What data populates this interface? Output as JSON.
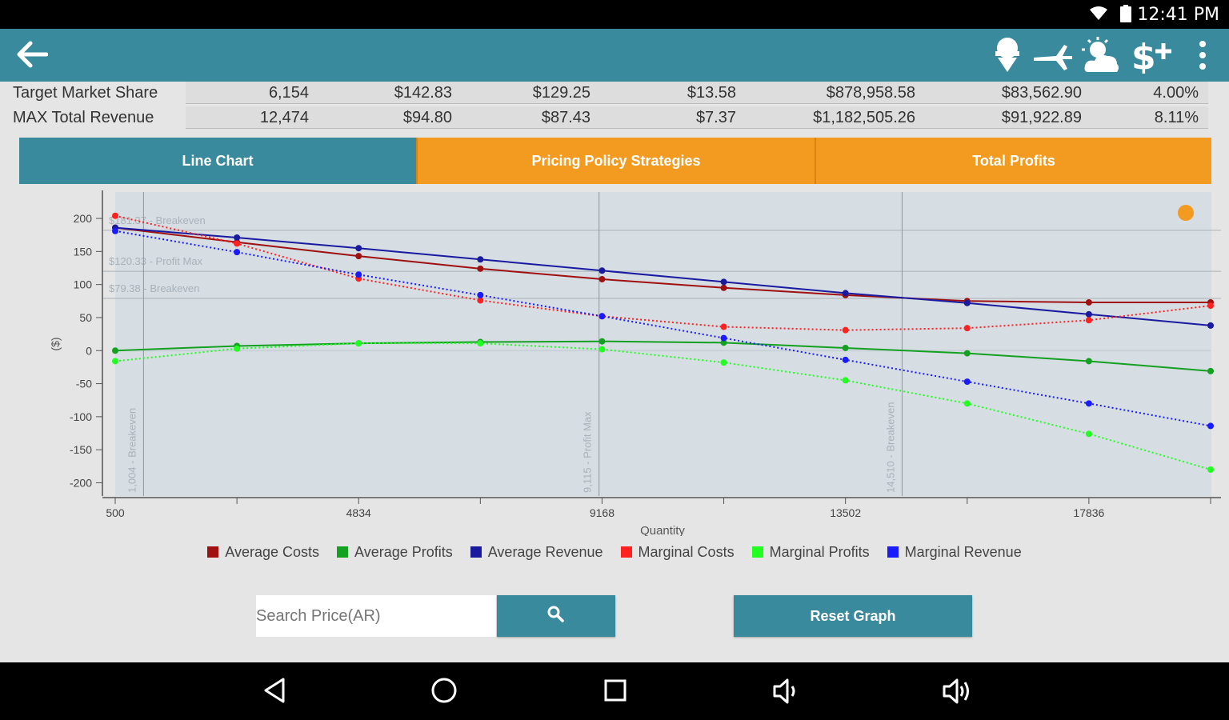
{
  "status": {
    "time": "12:41 PM"
  },
  "appbar": {
    "icons": [
      "back-arrow-icon",
      "ice-cream-icon",
      "plane-icon",
      "weather-icon",
      "dollar-plus-icon",
      "more-vert-icon"
    ]
  },
  "summary": {
    "rows": [
      {
        "label": "Target Market Share",
        "values": [
          "6,154",
          "$142.83",
          "$129.25",
          "$13.58",
          "$878,958.58",
          "$83,562.90",
          "4.00%"
        ]
      },
      {
        "label": "MAX Total Revenue",
        "values": [
          "12,474",
          "$94.80",
          "$87.43",
          "$7.37",
          "$1,182,505.26",
          "$91,922.89",
          "8.11%"
        ]
      }
    ]
  },
  "tabs": [
    {
      "label": "Line Chart",
      "active": true
    },
    {
      "label": "Pricing Policy Strategies",
      "active": false
    },
    {
      "label": "Total Profits",
      "active": false
    }
  ],
  "chart_data": {
    "type": "line",
    "xlabel": "Quantity",
    "ylabel": "($)",
    "x_ticks": [
      "500",
      "4834",
      "9168",
      "13502",
      "17836"
    ],
    "x": [
      500,
      2667,
      4834,
      7001,
      9168,
      11335,
      13502,
      15669,
      17836,
      20003
    ],
    "ylim": [
      -220,
      240
    ],
    "y_ticks": [
      200,
      150,
      100,
      50,
      0,
      -50,
      -100,
      -150,
      -200
    ],
    "hlines": [
      {
        "y": 182,
        "label": "$181.37 - Breakeven"
      },
      {
        "y": 120,
        "label": "$120.33 - Profit Max"
      },
      {
        "y": 79,
        "label": "$79.38 - Breakeven"
      }
    ],
    "vlines": [
      {
        "x": 1004,
        "label": "1,004 - Breakeven"
      },
      {
        "x": 9115,
        "label": "9,115 - Profit Max"
      },
      {
        "x": 14510,
        "label": "14,510 - Breakeven"
      }
    ],
    "series": [
      {
        "name": "Average Costs",
        "color": "#a01010",
        "dotted": false,
        "values": [
          186,
          164,
          143,
          124,
          108,
          95,
          84,
          75,
          73,
          73
        ]
      },
      {
        "name": "Average Profits",
        "color": "#14a020",
        "dotted": false,
        "values": [
          0,
          7,
          11,
          13,
          14,
          12,
          4,
          -4,
          -16,
          -31
        ]
      },
      {
        "name": "Average Revenue",
        "color": "#1a1aa0",
        "dotted": false,
        "values": [
          186,
          171,
          155,
          138,
          121,
          104,
          87,
          72,
          55,
          38
        ]
      },
      {
        "name": "Marginal Costs",
        "color": "#ff2020",
        "dotted": true,
        "values": [
          204,
          162,
          109,
          76,
          52,
          36,
          31,
          34,
          46,
          68
        ]
      },
      {
        "name": "Marginal Profits",
        "color": "#20ff20",
        "dotted": true,
        "values": [
          -16,
          3,
          11,
          11,
          2,
          -18,
          -45,
          -80,
          -126,
          -180
        ]
      },
      {
        "name": "Marginal Revenue",
        "color": "#1a1aff",
        "dotted": true,
        "values": [
          181,
          149,
          115,
          84,
          52,
          19,
          -14,
          -47,
          -80,
          -114
        ]
      }
    ]
  },
  "controls": {
    "search_placeholder": "Search Price(AR)",
    "reset_label": "Reset Graph"
  }
}
